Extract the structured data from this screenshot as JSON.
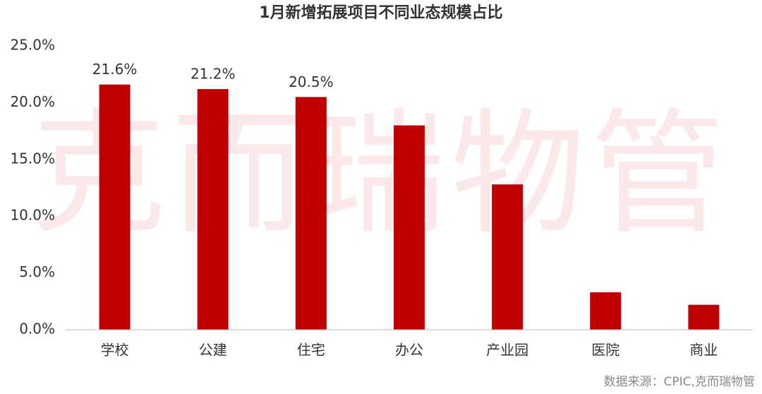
{
  "chart_data": {
    "type": "bar",
    "title": "1月新增拓展项目不同业态规模占比",
    "categories": [
      "学校",
      "公建",
      "住宅",
      "办公",
      "产业园",
      "医院",
      "商业"
    ],
    "values": [
      21.6,
      21.2,
      20.5,
      18.0,
      12.8,
      3.3,
      2.2
    ],
    "value_labels": [
      "21.6%",
      "21.2%",
      "20.5%",
      null,
      null,
      null,
      null
    ],
    "color": "#c00000",
    "ylim": [
      0,
      25
    ],
    "yticks": [
      {
        "value": 0,
        "label": "0.0%"
      },
      {
        "value": 5,
        "label": "5.0%"
      },
      {
        "value": 10,
        "label": "10.0%"
      },
      {
        "value": 15,
        "label": "15.0%"
      },
      {
        "value": 20,
        "label": "20.0%"
      },
      {
        "value": 25,
        "label": "25.0%"
      }
    ],
    "grid": false,
    "watermark": "克而瑞物管",
    "source": "数据来源：CPIC,克而瑞物管"
  }
}
